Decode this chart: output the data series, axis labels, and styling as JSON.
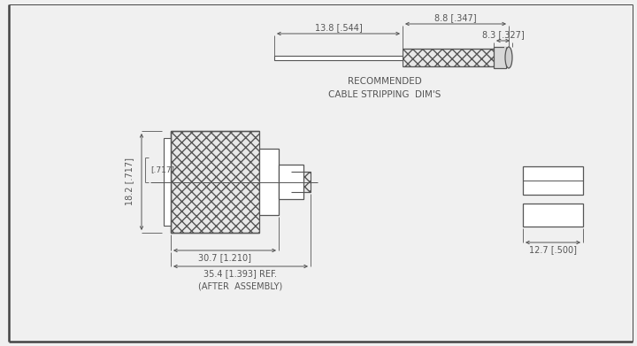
{
  "bg_color": "#f0f0f0",
  "line_color": "#555555",
  "dim_color": "#555555",
  "border_color": "#444444",
  "white": "#ffffff",
  "hatch_fc": "#e8e8e8",
  "title": "RECOMMENDED\nCABLE STRIPPING  DIM'S",
  "dim_top_1": "13.8 [.544]",
  "dim_top_2": "8.8 [.347]",
  "dim_top_3": "8.3 [.327]",
  "dim_height": "18.2 [.717]",
  "dim_inner": "[.717]",
  "dim_width1": "30.7 [1.210]",
  "dim_width2": "35.4 [1.393] REF.",
  "dim_width2b": "(AFTER  ASSEMBLY)",
  "dim_right": "12.7 [.500]",
  "font_size": 7.0,
  "font_family": "DejaVu Sans"
}
